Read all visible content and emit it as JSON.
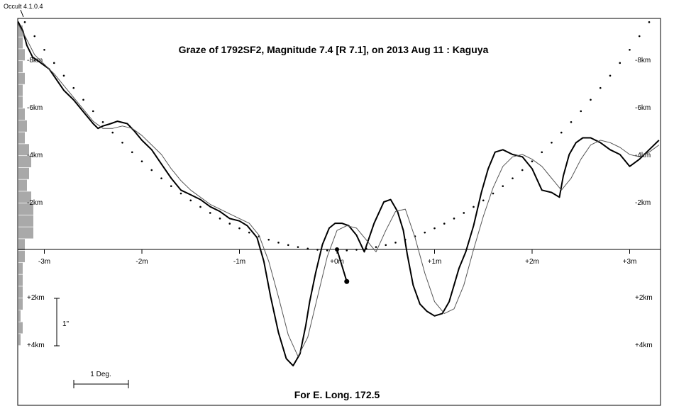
{
  "app_label": "Occult 4.1.0.4",
  "chart_data": {
    "type": "line",
    "title": "Graze of  1792SF2,  Magnitude 7.4 [R 7.1],  on 2013 Aug 11  :  Kaguya",
    "footer": "For E. Long. 172.5",
    "x_unit": "minutes",
    "y_unit": "km (positive = south of baseline)",
    "xlim": [
      -3.32,
      3.3
    ],
    "ylim": [
      -9.8,
      6.5
    ],
    "x_ticks": [
      {
        "v": -3,
        "label": "-3m"
      },
      {
        "v": -2,
        "label": "-2m"
      },
      {
        "v": -1,
        "label": "-1m"
      },
      {
        "v": 0,
        "label": "+0m"
      },
      {
        "v": 1,
        "label": "+1m"
      },
      {
        "v": 2,
        "label": "+2m"
      },
      {
        "v": 3,
        "label": "+3m"
      }
    ],
    "y_ticks": [
      {
        "v": -8,
        "label": "-8km"
      },
      {
        "v": -6,
        "label": "-6km"
      },
      {
        "v": -4,
        "label": "-4km"
      },
      {
        "v": -2,
        "label": "-2km"
      },
      {
        "v": 2,
        "label": "+2km"
      },
      {
        "v": 4,
        "label": "+4km"
      }
    ],
    "scale_arcsec_label": "1\"",
    "scale_deg_label": "1 Deg.",
    "series": [
      {
        "role": "kaguya-limb",
        "x": [
          -3.27,
          -3.22,
          -3.18,
          -3.12,
          -3.05,
          -2.95,
          -2.8,
          -2.7,
          -2.6,
          -2.5,
          -2.45,
          -2.4,
          -2.32,
          -2.25,
          -2.15,
          -2.08,
          -2.0,
          -1.9,
          -1.8,
          -1.7,
          -1.6,
          -1.5,
          -1.4,
          -1.3,
          -1.2,
          -1.1,
          -1.0,
          -0.92,
          -0.82,
          -0.75,
          -0.68,
          -0.6,
          -0.52,
          -0.45,
          -0.38,
          -0.32,
          -0.28,
          -0.22,
          -0.15,
          -0.08,
          -0.02,
          0.05,
          0.12,
          0.2,
          0.28,
          0.38,
          0.48,
          0.55,
          0.62,
          0.68,
          0.72,
          0.78,
          0.85,
          0.92,
          1.0,
          1.08,
          1.15,
          1.2,
          1.25,
          1.32,
          1.4,
          1.48,
          1.55,
          1.62,
          1.7,
          1.8,
          1.9,
          2.0,
          2.1,
          2.2,
          2.28,
          2.32,
          2.38,
          2.45,
          2.52,
          2.6,
          2.7,
          2.8,
          2.9,
          3.0,
          3.1,
          3.2,
          3.3
        ],
        "y": [
          -9.6,
          -9.2,
          -8.6,
          -8.1,
          -7.9,
          -7.6,
          -6.7,
          -6.3,
          -5.8,
          -5.3,
          -5.1,
          -5.2,
          -5.3,
          -5.4,
          -5.3,
          -5.0,
          -4.6,
          -4.2,
          -3.6,
          -3.0,
          -2.5,
          -2.3,
          -2.1,
          -1.8,
          -1.6,
          -1.3,
          -1.2,
          -1.0,
          -0.5,
          0.5,
          2.0,
          3.5,
          4.6,
          4.9,
          4.4,
          3.2,
          2.2,
          1.0,
          -0.2,
          -0.9,
          -1.1,
          -1.1,
          -1.0,
          -0.6,
          0.1,
          -1.1,
          -2.0,
          -2.1,
          -1.6,
          -0.8,
          0.2,
          1.5,
          2.3,
          2.6,
          2.8,
          2.7,
          2.2,
          1.5,
          0.8,
          0.1,
          -1.0,
          -2.4,
          -3.4,
          -4.1,
          -4.2,
          -4.0,
          -3.9,
          -3.4,
          -2.5,
          -2.4,
          -2.2,
          -3.1,
          -4.0,
          -4.5,
          -4.7,
          -4.7,
          -4.5,
          -4.2,
          -4.0,
          -3.5,
          -3.8,
          -4.2,
          -4.6
        ]
      },
      {
        "role": "smoothed-limb",
        "x": [
          -3.27,
          -3.2,
          -3.1,
          -3.0,
          -2.9,
          -2.8,
          -2.7,
          -2.6,
          -2.5,
          -2.4,
          -2.3,
          -2.2,
          -2.1,
          -2.0,
          -1.9,
          -1.8,
          -1.7,
          -1.6,
          -1.5,
          -1.4,
          -1.3,
          -1.2,
          -1.1,
          -1.0,
          -0.9,
          -0.8,
          -0.7,
          -0.6,
          -0.5,
          -0.4,
          -0.3,
          -0.2,
          -0.1,
          0.0,
          0.1,
          0.2,
          0.3,
          0.4,
          0.5,
          0.6,
          0.7,
          0.8,
          0.9,
          1.0,
          1.1,
          1.2,
          1.3,
          1.4,
          1.5,
          1.6,
          1.7,
          1.8,
          1.9,
          2.0,
          2.1,
          2.2,
          2.3,
          2.4,
          2.5,
          2.6,
          2.7,
          2.8,
          2.9,
          3.0,
          3.1,
          3.2,
          3.3
        ],
        "y": [
          -9.5,
          -9.0,
          -8.2,
          -7.8,
          -7.4,
          -6.9,
          -6.4,
          -5.9,
          -5.4,
          -5.1,
          -5.1,
          -5.2,
          -5.1,
          -4.8,
          -4.4,
          -4.0,
          -3.4,
          -2.9,
          -2.5,
          -2.2,
          -1.9,
          -1.7,
          -1.5,
          -1.3,
          -1.1,
          -0.6,
          0.5,
          2.0,
          3.6,
          4.5,
          3.7,
          2.0,
          0.3,
          -0.8,
          -1.0,
          -0.9,
          -0.4,
          0.1,
          -0.8,
          -1.6,
          -1.7,
          -0.5,
          1.0,
          2.2,
          2.7,
          2.5,
          1.5,
          0.0,
          -1.4,
          -2.6,
          -3.5,
          -3.9,
          -4.0,
          -3.8,
          -3.5,
          -3.0,
          -2.5,
          -3.0,
          -3.8,
          -4.4,
          -4.6,
          -4.5,
          -4.3,
          -4.0,
          -3.9,
          -4.1,
          -4.4
        ]
      }
    ],
    "mean_limb_dots": {
      "x": [
        -3.3,
        -3.2,
        -3.1,
        -3.0,
        -2.9,
        -2.8,
        -2.7,
        -2.6,
        -2.5,
        -2.4,
        -2.3,
        -2.2,
        -2.1,
        -2.0,
        -1.9,
        -1.8,
        -1.7,
        -1.6,
        -1.5,
        -1.4,
        -1.3,
        -1.2,
        -1.1,
        -1.0,
        -0.9,
        -0.8,
        -0.7,
        -0.6,
        -0.5,
        -0.4,
        -0.3,
        -0.2,
        -0.1,
        0.0,
        0.1,
        0.2,
        0.3,
        0.4,
        0.5,
        0.6,
        0.7,
        0.8,
        0.9,
        1.0,
        1.1,
        1.2,
        1.3,
        1.4,
        1.5,
        1.6,
        1.7,
        1.8,
        1.9,
        2.0,
        2.1,
        2.2,
        2.3,
        2.4,
        2.5,
        2.6,
        2.7,
        2.8,
        2.9,
        3.0,
        3.1,
        3.2,
        3.3
      ],
      "a": 0.94,
      "x0": 0.0,
      "y0": 0.05
    },
    "star_path": {
      "x": [
        0.0,
        0.1
      ],
      "y": [
        0.0,
        1.35
      ]
    },
    "histogram": {
      "y_bins": [
        -9.2,
        -8.7,
        -8.2,
        -7.7,
        -7.2,
        -6.7,
        -6.2,
        -5.7,
        -5.2,
        -4.7,
        -4.2,
        -3.7,
        -3.2,
        -2.7,
        -2.2,
        -1.7,
        -1.2,
        -0.7,
        -0.2,
        0.3,
        0.8,
        1.3,
        1.8,
        2.3,
        2.8,
        3.3,
        3.8
      ],
      "counts": [
        2,
        2,
        3,
        2,
        3,
        2,
        2,
        3,
        4,
        3,
        5,
        6,
        5,
        4,
        6,
        7,
        7,
        7,
        3,
        3,
        2,
        2,
        2,
        2,
        1,
        2,
        1
      ]
    },
    "colors": {
      "profile": "#000000",
      "smooth": "#555555",
      "dots": "#000000",
      "histogram": "#a9a9a9",
      "frame": "#000000"
    }
  }
}
